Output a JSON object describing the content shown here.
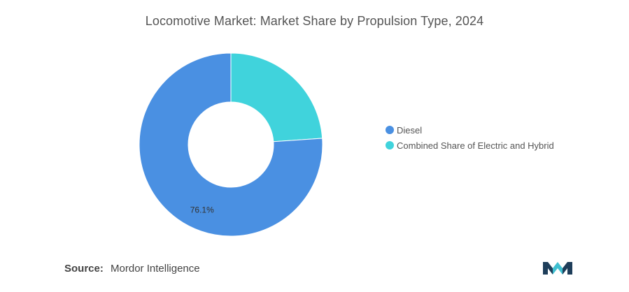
{
  "chart_data": {
    "type": "pie",
    "title": "Locomotive Market: Market Share by Propulsion Type, 2024",
    "donut": true,
    "slices": [
      {
        "label": "Diesel",
        "value": 76.1,
        "data_label": "76.1%",
        "color": "#4A90E2"
      },
      {
        "label": "Combined Share of Electric and Hybrid",
        "value": 23.9,
        "data_label": "",
        "color": "#40D3DC"
      }
    ],
    "legend_position": "right"
  },
  "source": {
    "prefix": "Source:",
    "name": "Mordor Intelligence"
  },
  "logo": {
    "icon": "mordor-intelligence-logo-icon",
    "colors": [
      "#1E3E5A",
      "#3FBFD0"
    ]
  }
}
